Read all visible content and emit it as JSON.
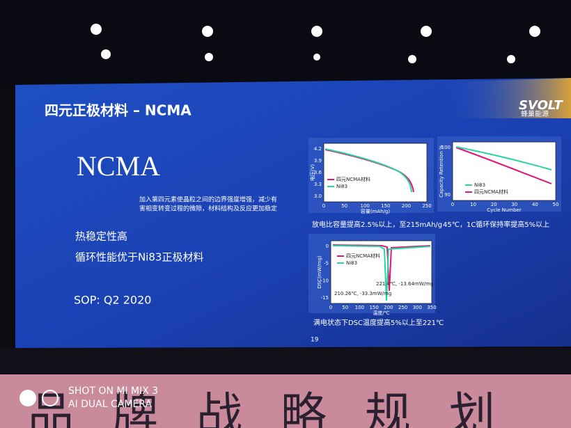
{
  "slide": {
    "title": "四元正极材料 – NCMA",
    "logo": "SVOLT",
    "logo_sub": "蜂巢能源",
    "heading": "NCMA",
    "description": [
      "加入第四元素使晶粒之间的边界强度增强，减少有",
      "害相变转变过程的微隙，材料结构及反应更加稳定"
    ],
    "points": [
      "热稳定性高",
      "循环性能优于Ni83正极材料"
    ],
    "sop": "SOP: Q2 2020",
    "page": "19"
  },
  "charts": [
    {
      "ylabel": "电压(V)",
      "xlabel": "容量(mAh/g)",
      "xticks": [
        "0",
        "50",
        "100",
        "150",
        "200",
        "250"
      ],
      "yticks": [
        "4.2",
        "3.9",
        "3.6",
        "3.3",
        "3.0"
      ],
      "legend": [
        "四元NCMA材料",
        "Ni83"
      ],
      "caption": "放电比容量提高2.5%以上，至215mAh/g"
    },
    {
      "ylabel": "Capacity Retention %",
      "xlabel": "Cycle Number",
      "xticks": [
        "0",
        "10",
        "20",
        "30",
        "40",
        "50"
      ],
      "yticks": [
        "100",
        "90"
      ],
      "legend": [
        "Ni83",
        "四元NCMA材料"
      ],
      "caption": "45℃，1C循环保持率提高5%以上"
    },
    {
      "ylabel": "DSC(mW/mg)",
      "xlabel": "温度/℃",
      "xticks": [
        "0",
        "50",
        "100",
        "150",
        "200",
        "250",
        "300",
        "350"
      ],
      "yticks": [
        "0",
        "-5",
        "-10",
        "-15"
      ],
      "legend": [
        "四元NCMA材料",
        "Ni83"
      ],
      "annotations": [
        "221.4℃, -13.64mW/mg",
        "210.26℃, -33.3mW/mg"
      ],
      "caption": "满电状态下DSC温度提高5%以上至221℃"
    }
  ],
  "watermark": {
    "line1": "SHOT ON MI MIX 3",
    "line2": "AI DUAL CAMERA"
  },
  "banner": "品牌战略规划"
}
